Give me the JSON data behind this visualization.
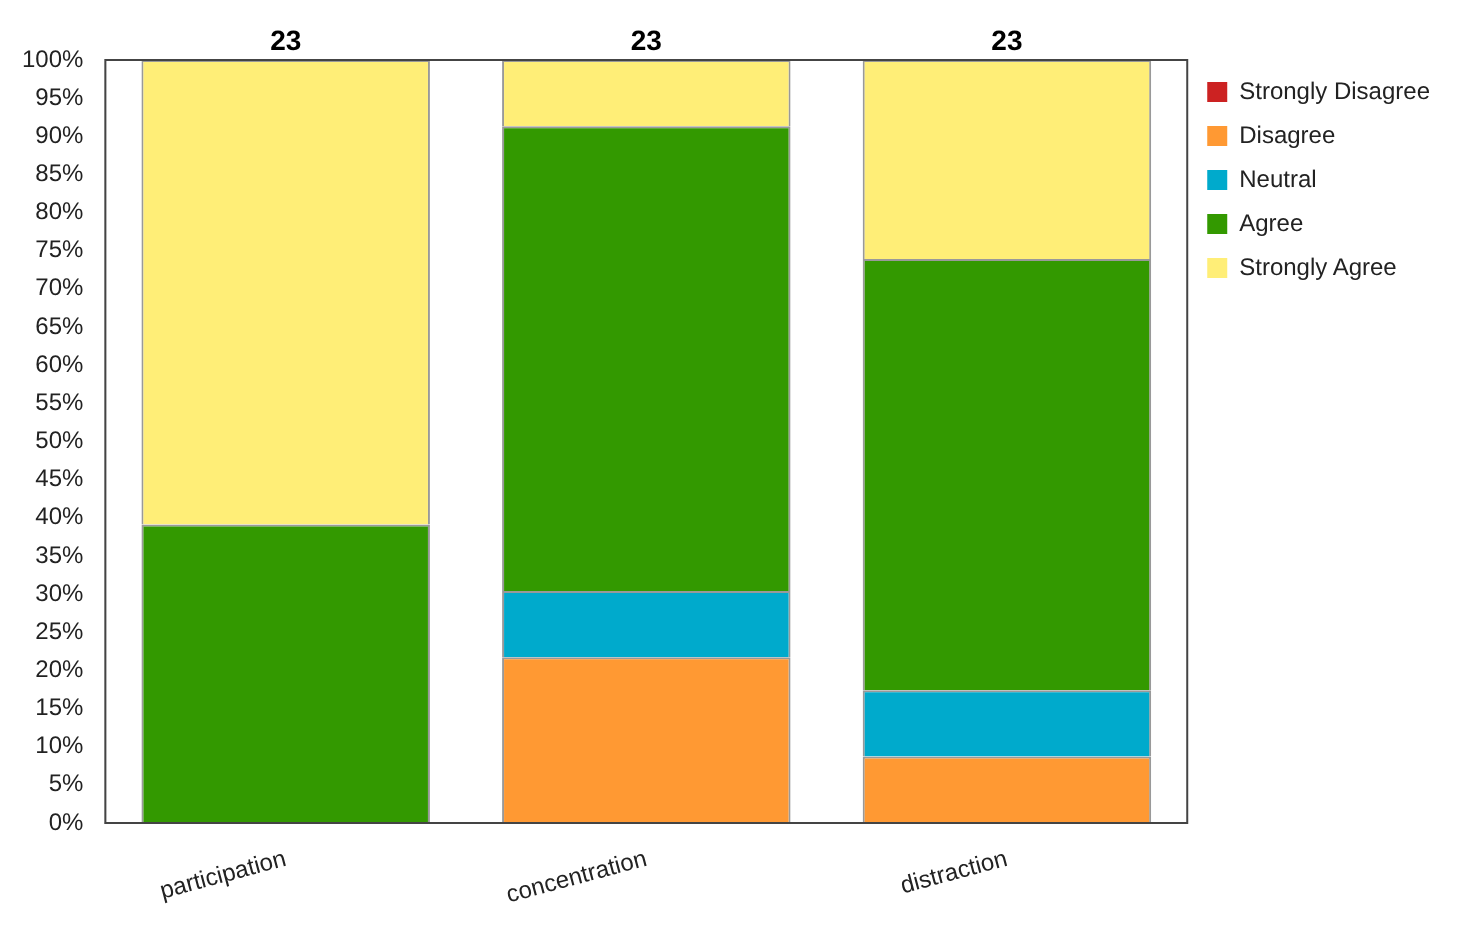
{
  "chart_data": {
    "type": "bar",
    "stacked": true,
    "categories": [
      "participation",
      "concentration",
      "distraction"
    ],
    "series": [
      {
        "name": "Strongly Disagree",
        "color": "#cc2222",
        "values": [
          0,
          0,
          0
        ]
      },
      {
        "name": "Disagree",
        "color": "#ff9933",
        "values": [
          0,
          21.7,
          8.7
        ]
      },
      {
        "name": "Neutral",
        "color": "#00aacc",
        "values": [
          0,
          8.7,
          8.7
        ]
      },
      {
        "name": "Agree",
        "color": "#339900",
        "values": [
          39.1,
          60.9,
          56.5
        ]
      },
      {
        "name": "Strongly Agree",
        "color": "#ffee77",
        "values": [
          60.9,
          8.7,
          26.1
        ]
      }
    ],
    "ylim": [
      0,
      100
    ],
    "yticks": [
      {
        "value": 0,
        "label": "0%"
      },
      {
        "value": 5,
        "label": "5%"
      },
      {
        "value": 10,
        "label": "10%"
      },
      {
        "value": 15,
        "label": "15%"
      },
      {
        "value": 20,
        "label": "20%"
      },
      {
        "value": 25,
        "label": "25%"
      },
      {
        "value": 30,
        "label": "30%"
      },
      {
        "value": 35,
        "label": "35%"
      },
      {
        "value": 40,
        "label": "40%"
      },
      {
        "value": 45,
        "label": "45%"
      },
      {
        "value": 50,
        "label": "50%"
      },
      {
        "value": 55,
        "label": "55%"
      },
      {
        "value": 60,
        "label": "60%"
      },
      {
        "value": 65,
        "label": "65%"
      },
      {
        "value": 70,
        "label": "70%"
      },
      {
        "value": 75,
        "label": "75%"
      },
      {
        "value": 80,
        "label": "80%"
      },
      {
        "value": 85,
        "label": "85%"
      },
      {
        "value": 90,
        "label": "90%"
      },
      {
        "value": 95,
        "label": "95%"
      },
      {
        "value": 100,
        "label": "100%"
      }
    ],
    "annotations": [
      {
        "text": "23",
        "x": "participation",
        "y": 100
      },
      {
        "text": "23",
        "x": "concentration",
        "y": 100
      },
      {
        "text": "23",
        "x": "distraction",
        "y": 100
      }
    ],
    "grid": false,
    "legend": "top right"
  }
}
